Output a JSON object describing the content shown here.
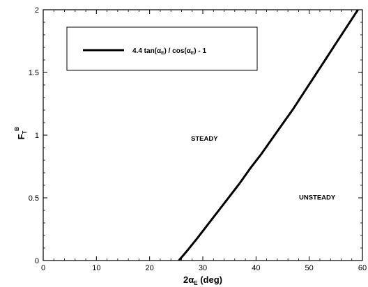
{
  "chart_data": {
    "type": "line",
    "title": "",
    "xlabel": "2αE (deg)",
    "xlabel_parts": {
      "prefix": "2α",
      "sub": "E",
      "suffix": " (deg)"
    },
    "ylabel": "FTB",
    "ylabel_parts": {
      "base": "F",
      "sub": "T",
      "sup": "B"
    },
    "xlim": [
      0,
      60
    ],
    "ylim": [
      0,
      2
    ],
    "x_ticks": [
      0,
      10,
      20,
      30,
      40,
      50,
      60
    ],
    "y_ticks": [
      0,
      0.5,
      1,
      1.5,
      2
    ],
    "x_tick_labels": [
      "0",
      "10",
      "20",
      "30",
      "40",
      "50",
      "60"
    ],
    "y_tick_labels": [
      "0",
      "0.5",
      "1",
      "1.5",
      "2"
    ],
    "grid": false,
    "legend_position": "top-left",
    "series": [
      {
        "name": "4.4 tan(αE) / cos(αE) - 1",
        "color": "#000000",
        "x": [
          25.5,
          27,
          29,
          31,
          33,
          35,
          37,
          39,
          41,
          43,
          45,
          47,
          49,
          51,
          53,
          55,
          57,
          59,
          60
        ],
        "y": [
          0.0,
          0.075,
          0.18,
          0.29,
          0.4,
          0.51,
          0.62,
          0.74,
          0.85,
          0.97,
          1.09,
          1.21,
          1.34,
          1.47,
          1.6,
          1.73,
          1.86,
          1.99,
          2.06
        ]
      }
    ],
    "legend_label_parts": [
      "4.4  tan(α",
      "E",
      ") / cos(α",
      "E",
      ") - 1"
    ],
    "annotations": [
      {
        "text": "STEADY",
        "x": 30.3,
        "y": 0.955
      },
      {
        "text": "UNSTEADY",
        "x": 51.5,
        "y": 0.485
      }
    ]
  }
}
